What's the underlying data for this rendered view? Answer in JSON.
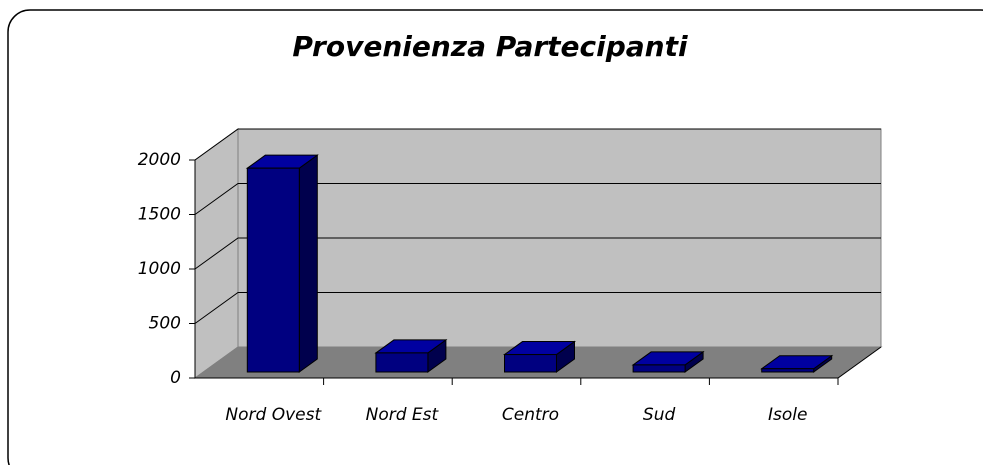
{
  "chart_data": {
    "type": "bar3d",
    "title": "Provenienza Partecipanti",
    "categories": [
      "Nord Ovest",
      "Nord Est",
      "Centro",
      "Sud",
      "Isole"
    ],
    "values": [
      1870,
      175,
      160,
      65,
      30
    ],
    "color": "#000080",
    "ylim": [
      0,
      2000
    ],
    "yticks": [
      0,
      500,
      1000,
      1500,
      2000
    ],
    "grid": true
  }
}
